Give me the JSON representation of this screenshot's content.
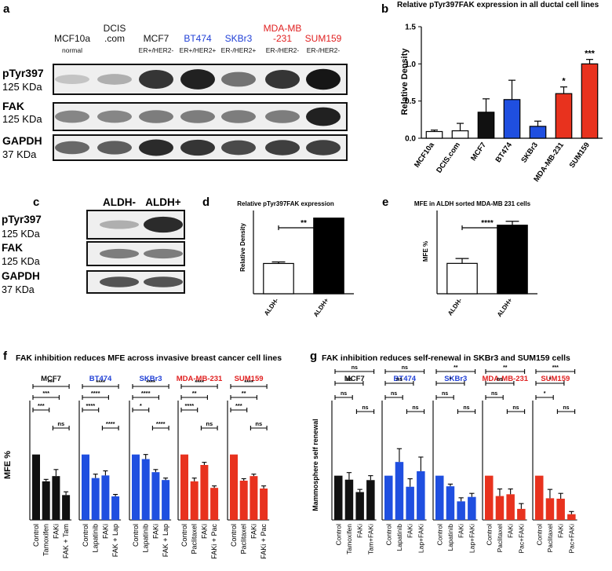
{
  "panels": {
    "a": {
      "letter": "a",
      "lanes": [
        {
          "name": "MCF10a",
          "sub": "normal",
          "color": "#111111"
        },
        {
          "name": "DCIS",
          "name2": ".com",
          "color": "#111111"
        },
        {
          "name": "MCF7",
          "sub": "ER+/HER2-",
          "color": "#111111"
        },
        {
          "name": "BT474",
          "sub": "ER+/HER2+",
          "color": "#1f3fd6"
        },
        {
          "name": "SKBr3",
          "sub": "ER-/HER2+",
          "color": "#1f3fd6"
        },
        {
          "name": "MDA-MB",
          "name2": "-231",
          "sub": "ER-/HER2-",
          "color": "#e02020"
        },
        {
          "name": "SUM159",
          "sub": "ER-/HER2-",
          "color": "#e02020"
        }
      ],
      "rows": [
        {
          "name": "pTyr397",
          "mw": "125 KDa",
          "intensities": [
            0.15,
            0.25,
            0.85,
            0.95,
            0.55,
            0.85,
            1.0
          ]
        },
        {
          "name": "FAK",
          "mw": "125 KDa",
          "intensities": [
            0.45,
            0.45,
            0.5,
            0.5,
            0.5,
            0.5,
            0.95
          ]
        },
        {
          "name": "GAPDH",
          "mw": "37 KDa",
          "intensities": [
            0.6,
            0.65,
            0.9,
            0.85,
            0.75,
            0.8,
            0.8
          ]
        }
      ]
    },
    "b": {
      "letter": "b",
      "chart_data": {
        "type": "bar",
        "title": "Relative pTyr397FAK expression in all ductal cell lines",
        "ylabel": "Relative Density",
        "ylim": [
          0,
          1.5
        ],
        "yticks": [
          "0.0",
          "0.5",
          "1.0",
          "1.5"
        ],
        "categories": [
          "MCF10a",
          "DCIS.com",
          "MCF7",
          "BT474",
          "SKBr3",
          "MDA-MB-231",
          "SUM159"
        ],
        "values": [
          0.09,
          0.1,
          0.35,
          0.52,
          0.16,
          0.6,
          1.0
        ],
        "errors": [
          0.02,
          0.1,
          0.18,
          0.26,
          0.07,
          0.09,
          0.06
        ],
        "colors": [
          "#ffffff",
          "#ffffff",
          "#111111",
          "#1f4fe0",
          "#1f4fe0",
          "#e8321e",
          "#e8321e"
        ],
        "significance": [
          "",
          "",
          "",
          "",
          "",
          "*",
          "***"
        ]
      }
    },
    "c": {
      "letter": "c",
      "lanes": [
        "ALDH-",
        "ALDH+"
      ],
      "rows": [
        {
          "name": "pTyr397",
          "mw": "125 KDa",
          "intensities": [
            0.25,
            0.9
          ]
        },
        {
          "name": "FAK",
          "mw": "125 KDa",
          "intensities": [
            0.5,
            0.5
          ]
        },
        {
          "name": "GAPDH",
          "mw": "37 KDa",
          "intensities": [
            0.7,
            0.7
          ]
        }
      ]
    },
    "d": {
      "letter": "d",
      "chart_data": {
        "type": "bar",
        "title": "Relative pTyr397FAK expression",
        "ylabel": "Relative Density",
        "categories": [
          "ALDH-",
          "ALDH+"
        ],
        "values": [
          0.4,
          1.0
        ],
        "errors": [
          0.02,
          0.0
        ],
        "ylim": [
          0,
          1.1
        ],
        "colors": [
          "#ffffff",
          "#000000"
        ],
        "significance": "**"
      }
    },
    "e": {
      "letter": "e",
      "chart_data": {
        "type": "bar",
        "title": "MFE in ALDH sorted MDA-MB 231 cells",
        "ylabel": "MFE %",
        "categories": [
          "ALDH-",
          "ALDH+"
        ],
        "values": [
          0.62,
          1.4
        ],
        "errors": [
          0.1,
          0.08
        ],
        "ylim": [
          0,
          1.7
        ],
        "colors": [
          "#ffffff",
          "#000000"
        ],
        "significance": "****"
      }
    },
    "f": {
      "letter": "f",
      "chart_data": {
        "type": "bar",
        "title": "FAK inhibition reduces MFE across invasive breast cancer cell lines",
        "ylabel": "MFE %",
        "ylim": [
          0,
          1.2
        ],
        "groups": [
          {
            "name": "MCF7",
            "color": "#111111",
            "label_color": "#111111",
            "categories": [
              "Control",
              "Tamoxifen",
              "FAKi",
              "FAK + Tam"
            ],
            "values": [
              1.0,
              0.59,
              0.67,
              0.38
            ],
            "errors": [
              0,
              0.03,
              0.1,
              0.05
            ],
            "sig_upper": [
              {
                "from": 0,
                "to": 3,
                "label": "***"
              },
              {
                "from": 0,
                "to": 2,
                "label": "***"
              },
              {
                "from": 0,
                "to": 1,
                "label": "***"
              },
              {
                "from": 2,
                "to": 3,
                "label": "ns"
              }
            ]
          },
          {
            "name": "BT474",
            "color": "#1f4fe0",
            "label_color": "#1f3fd6",
            "categories": [
              "Control",
              "Lapatinib",
              "FAKi",
              "FAK + Lap"
            ],
            "values": [
              1.0,
              0.64,
              0.68,
              0.36
            ],
            "errors": [
              0,
              0.06,
              0.07,
              0.03
            ],
            "sig_upper": [
              {
                "from": 0,
                "to": 3,
                "label": "****"
              },
              {
                "from": 0,
                "to": 2,
                "label": "****"
              },
              {
                "from": 0,
                "to": 1,
                "label": "****"
              },
              {
                "from": 2,
                "to": 3,
                "label": "****"
              }
            ]
          },
          {
            "name": "SKBr3",
            "color": "#1f4fe0",
            "label_color": "#1f3fd6",
            "categories": [
              "Control",
              "Lapatinib",
              "FAKi",
              "FAK + Lap"
            ],
            "values": [
              1.0,
              0.93,
              0.73,
              0.61
            ],
            "errors": [
              0,
              0.07,
              0.04,
              0.03
            ],
            "sig_upper": [
              {
                "from": 0,
                "to": 3,
                "label": "****"
              },
              {
                "from": 0,
                "to": 2,
                "label": "****"
              },
              {
                "from": 0,
                "to": 1,
                "label": "*"
              },
              {
                "from": 2,
                "to": 3,
                "label": "****"
              }
            ]
          },
          {
            "name": "MDA-MB-231",
            "color": "#e8321e",
            "label_color": "#e02020",
            "categories": [
              "Control",
              "Paclitaxel",
              "FAKi",
              "FAKi + Pac"
            ],
            "values": [
              1.0,
              0.59,
              0.84,
              0.49
            ],
            "errors": [
              0,
              0.05,
              0.04,
              0.03
            ],
            "sig_upper": [
              {
                "from": 0,
                "to": 3,
                "label": "****"
              },
              {
                "from": 0,
                "to": 2,
                "label": "**"
              },
              {
                "from": 0,
                "to": 1,
                "label": "****"
              },
              {
                "from": 2,
                "to": 3,
                "label": "ns"
              }
            ]
          },
          {
            "name": "SUM159",
            "color": "#e8321e",
            "label_color": "#e02020",
            "categories": [
              "Control",
              "Paclitaxel",
              "FAKi",
              "FAKi + Pac"
            ],
            "values": [
              1.0,
              0.6,
              0.67,
              0.48
            ],
            "errors": [
              0,
              0.03,
              0.03,
              0.04
            ],
            "sig_upper": [
              {
                "from": 0,
                "to": 3,
                "label": "****"
              },
              {
                "from": 0,
                "to": 2,
                "label": "**"
              },
              {
                "from": 0,
                "to": 1,
                "label": "***"
              },
              {
                "from": 2,
                "to": 3,
                "label": "ns"
              }
            ]
          }
        ]
      }
    },
    "g": {
      "letter": "g",
      "chart_data": {
        "type": "bar",
        "title": "FAK inhibition reduces self-renewal in SKBr3 and SUM159 cells",
        "ylabel": "Mammosphere self renewal",
        "ylim": [
          0,
          1.65
        ],
        "groups": [
          {
            "name": "MCF7",
            "color": "#111111",
            "label_color": "#111111",
            "categories": [
              "Control",
              "Tamoxifen",
              "FAKi",
              "Tam+FAKi"
            ],
            "values": [
              1.0,
              0.91,
              0.63,
              0.9
            ],
            "errors": [
              0,
              0.16,
              0.06,
              0.1
            ],
            "sig_upper": [
              {
                "from": 0,
                "to": 3,
                "label": "ns"
              },
              {
                "from": 0,
                "to": 2,
                "label": "ns"
              },
              {
                "from": 0,
                "to": 1,
                "label": "ns"
              },
              {
                "from": 2,
                "to": 3,
                "label": "ns"
              }
            ]
          },
          {
            "name": "BT474",
            "color": "#1f4fe0",
            "label_color": "#1f3fd6",
            "categories": [
              "Control",
              "Lapatinib",
              "FAKi",
              "Lap+FAKi"
            ],
            "values": [
              1.0,
              1.31,
              0.75,
              1.1
            ],
            "errors": [
              0,
              0.3,
              0.18,
              0.32
            ],
            "sig_upper": [
              {
                "from": 0,
                "to": 3,
                "label": "ns"
              },
              {
                "from": 0,
                "to": 2,
                "label": "ns"
              },
              {
                "from": 0,
                "to": 1,
                "label": "ns"
              },
              {
                "from": 2,
                "to": 3,
                "label": "ns"
              }
            ]
          },
          {
            "name": "SKBr3",
            "color": "#1f4fe0",
            "label_color": "#1f3fd6",
            "categories": [
              "Control",
              "Lapatinib",
              "FAKi",
              "Lap+FAKi"
            ],
            "values": [
              1.0,
              0.76,
              0.42,
              0.52
            ],
            "errors": [
              0,
              0.05,
              0.08,
              0.08
            ],
            "sig_upper": [
              {
                "from": 0,
                "to": 3,
                "label": "**"
              },
              {
                "from": 0,
                "to": 2,
                "label": "*"
              },
              {
                "from": 0,
                "to": 1,
                "label": "ns"
              },
              {
                "from": 2,
                "to": 3,
                "label": "ns"
              }
            ]
          },
          {
            "name": "MDA-MB-231",
            "color": "#e8321e",
            "label_color": "#e02020",
            "categories": [
              "Control",
              "Paclitaxel",
              "FAKi",
              "Pac+FAKi"
            ],
            "values": [
              1.0,
              0.54,
              0.58,
              0.25
            ],
            "errors": [
              0,
              0.16,
              0.12,
              0.12
            ],
            "sig_upper": [
              {
                "from": 0,
                "to": 3,
                "label": "**"
              },
              {
                "from": 0,
                "to": 2,
                "label": "ns"
              },
              {
                "from": 0,
                "to": 1,
                "label": "ns"
              },
              {
                "from": 2,
                "to": 3,
                "label": "ns"
              }
            ]
          },
          {
            "name": "SUM159",
            "color": "#e8321e",
            "label_color": "#e02020",
            "categories": [
              "Control",
              "Paclitaxel",
              "FAKi",
              "Pac+FAKi"
            ],
            "values": [
              1.0,
              0.49,
              0.48,
              0.13
            ],
            "errors": [
              0,
              0.2,
              0.12,
              0.06
            ],
            "sig_upper": [
              {
                "from": 0,
                "to": 3,
                "label": "***"
              },
              {
                "from": 0,
                "to": 2,
                "label": "*"
              },
              {
                "from": 0,
                "to": 1,
                "label": "*"
              },
              {
                "from": 2,
                "to": 3,
                "label": "ns"
              }
            ]
          }
        ]
      }
    }
  }
}
